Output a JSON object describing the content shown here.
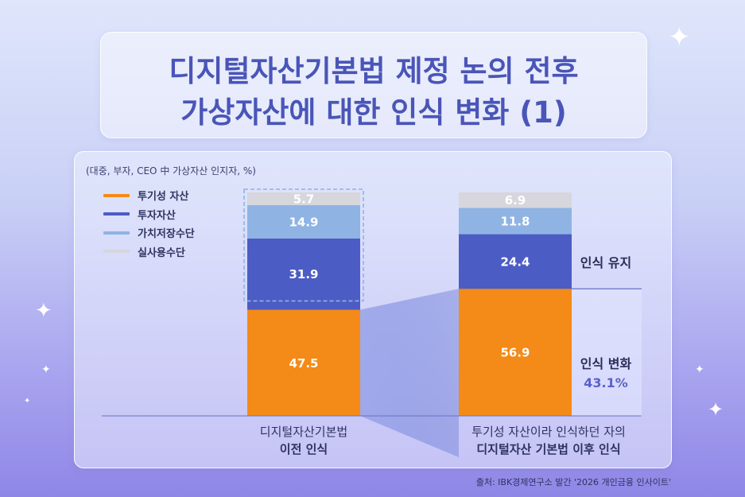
{
  "title": {
    "line1": "디지털자산기본법 제정 논의 전후",
    "line2": "가상자산에 대한 인식 변화 (1)"
  },
  "unit_note": "(대중, 부자, CEO 中 가상자산 인지자, %)",
  "legend": [
    {
      "label": "투기성 자산",
      "color": "#f48a17"
    },
    {
      "label": "투자자산",
      "color": "#4b5cc4"
    },
    {
      "label": "가치저장수단",
      "color": "#8fb3e3"
    },
    {
      "label": "실사용수단",
      "color": "#d6d6dc"
    }
  ],
  "categories": [
    {
      "line1": "디지털자산기본법",
      "line2": "이전 인식"
    },
    {
      "line1": "투기성 자산이라 인식하던 자의",
      "line2": "디지털자산 기본법 이후 인식"
    }
  ],
  "side_labels": {
    "keep": "인식 유지",
    "change": "인식 변화",
    "change_pct": "43.1%"
  },
  "source": "출처: IBK경제연구소 발간 '2026 개인금융 인사이트'",
  "chart_data": {
    "type": "bar",
    "stacked": true,
    "categories": [
      "디지털자산기본법 이전 인식",
      "투기성 자산이라 인식하던 자의 디지털자산 기본법 이후 인식"
    ],
    "series": [
      {
        "name": "투기성 자산",
        "color": "#f48a17",
        "values": [
          47.5,
          56.9
        ]
      },
      {
        "name": "투자자산",
        "color": "#4b5cc4",
        "values": [
          31.9,
          24.4
        ]
      },
      {
        "name": "가치저장수단",
        "color": "#8fb3e3",
        "values": [
          14.9,
          11.8
        ]
      },
      {
        "name": "실사용수단",
        "color": "#d6d6dc",
        "values": [
          5.7,
          6.9
        ]
      }
    ],
    "value_labels": [
      [
        "47.5",
        "31.9",
        "14.9",
        "5.7"
      ],
      [
        "56.9",
        "24.4",
        "11.8",
        "6.9"
      ]
    ],
    "ylim": [
      0,
      100
    ]
  }
}
